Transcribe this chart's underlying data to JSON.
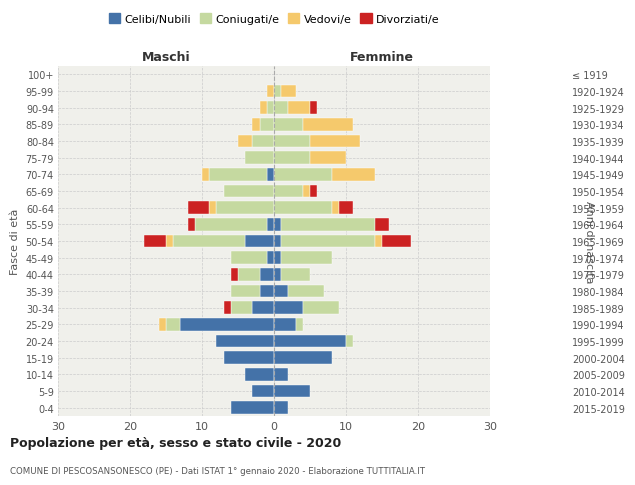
{
  "age_groups": [
    "0-4",
    "5-9",
    "10-14",
    "15-19",
    "20-24",
    "25-29",
    "30-34",
    "35-39",
    "40-44",
    "45-49",
    "50-54",
    "55-59",
    "60-64",
    "65-69",
    "70-74",
    "75-79",
    "80-84",
    "85-89",
    "90-94",
    "95-99",
    "100+"
  ],
  "birth_years": [
    "2015-2019",
    "2010-2014",
    "2005-2009",
    "2000-2004",
    "1995-1999",
    "1990-1994",
    "1985-1989",
    "1980-1984",
    "1975-1979",
    "1970-1974",
    "1965-1969",
    "1960-1964",
    "1955-1959",
    "1950-1954",
    "1945-1949",
    "1940-1944",
    "1935-1939",
    "1930-1934",
    "1925-1929",
    "1920-1924",
    "≤ 1919"
  ],
  "males": {
    "celibe": [
      6,
      3,
      4,
      7,
      8,
      13,
      3,
      2,
      2,
      1,
      4,
      1,
      0,
      0,
      1,
      0,
      0,
      0,
      0,
      0,
      0
    ],
    "coniugato": [
      0,
      0,
      0,
      0,
      0,
      2,
      3,
      4,
      3,
      5,
      10,
      10,
      8,
      7,
      8,
      4,
      3,
      2,
      1,
      0,
      0
    ],
    "vedovo": [
      0,
      0,
      0,
      0,
      0,
      1,
      0,
      0,
      0,
      0,
      1,
      0,
      1,
      0,
      1,
      0,
      2,
      1,
      1,
      1,
      0
    ],
    "divorziato": [
      0,
      0,
      0,
      0,
      0,
      0,
      1,
      0,
      1,
      0,
      3,
      1,
      3,
      0,
      0,
      0,
      0,
      0,
      0,
      0,
      0
    ]
  },
  "females": {
    "nubile": [
      2,
      5,
      2,
      8,
      10,
      3,
      4,
      2,
      1,
      1,
      1,
      1,
      0,
      0,
      0,
      0,
      0,
      0,
      0,
      0,
      0
    ],
    "coniugata": [
      0,
      0,
      0,
      0,
      1,
      1,
      5,
      5,
      4,
      7,
      13,
      13,
      8,
      4,
      8,
      5,
      5,
      4,
      2,
      1,
      0
    ],
    "vedova": [
      0,
      0,
      0,
      0,
      0,
      0,
      0,
      0,
      0,
      0,
      1,
      0,
      1,
      1,
      6,
      5,
      7,
      7,
      3,
      2,
      0
    ],
    "divorziata": [
      0,
      0,
      0,
      0,
      0,
      0,
      0,
      0,
      0,
      0,
      4,
      2,
      2,
      1,
      0,
      0,
      0,
      0,
      1,
      0,
      0
    ]
  },
  "color_celibe": "#4472a8",
  "color_coniugato": "#c5d9a0",
  "color_vedovo": "#f5c96c",
  "color_divorziato": "#cc2222",
  "xlim": 30,
  "title": "Popolazione per età, sesso e stato civile - 2020",
  "subtitle": "COMUNE DI PESCOSANSONESCO (PE) - Dati ISTAT 1° gennaio 2020 - Elaborazione TUTTITALIA.IT",
  "ylabel_left": "Fasce di età",
  "ylabel_right": "Anni di nascita",
  "xlabel_males": "Maschi",
  "xlabel_females": "Femmine",
  "bg_color": "#f0f0eb",
  "grid_color": "#cccccc"
}
